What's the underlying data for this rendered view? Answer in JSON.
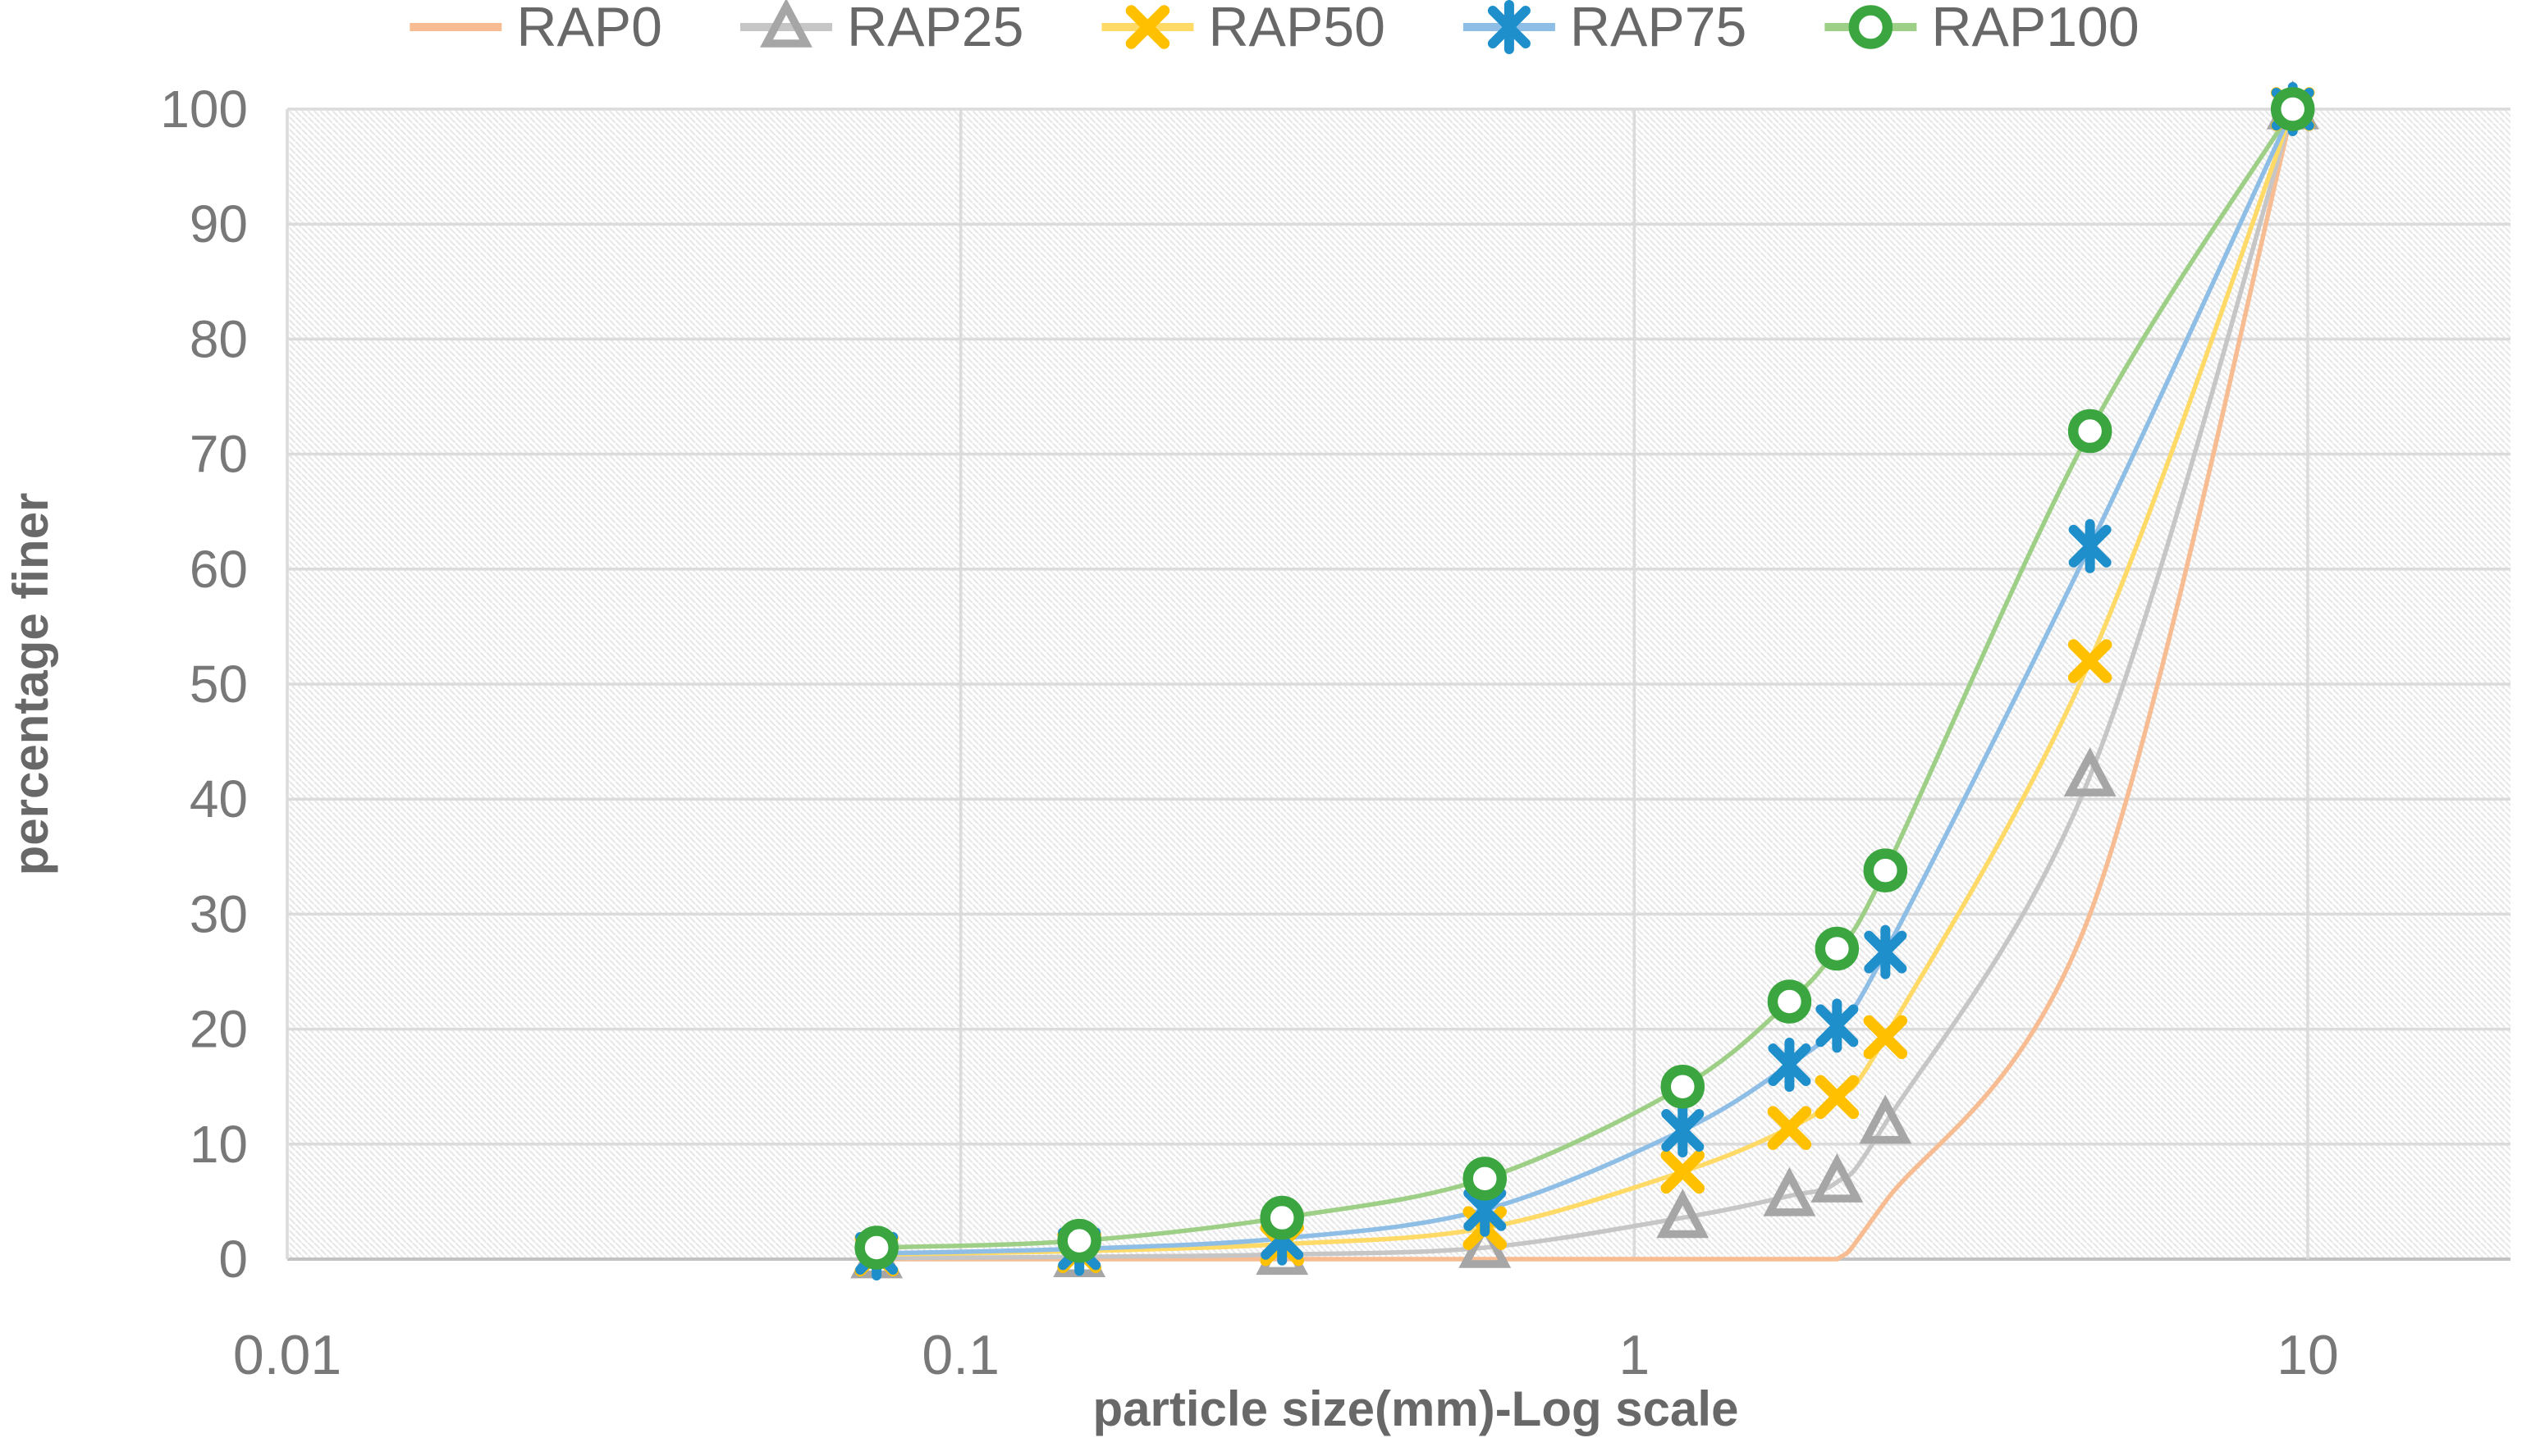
{
  "page": {
    "background": "#ffffff"
  },
  "legend": {
    "items": [
      "RAP0",
      "RAP25",
      "RAP50",
      "RAP75",
      "RAP100"
    ]
  },
  "chart_data": {
    "type": "line",
    "x_scale": "log",
    "title": "",
    "xlabel": "particle size(mm)-Log scale",
    "ylabel": "percentage finer",
    "xlim": [
      0.01,
      20
    ],
    "ylim": [
      0,
      100
    ],
    "x_sieve_sizes_mm": [
      0.075,
      0.15,
      0.3,
      0.6,
      1.18,
      1.7,
      2.0,
      2.36,
      4.75,
      9.5
    ],
    "series": [
      {
        "name": "RAP0",
        "marker": "none",
        "line_color": "#F8BC93",
        "marker_color": "#F8BC93",
        "values": [
          0,
          0,
          0,
          0,
          0,
          0,
          0,
          5,
          30,
          100
        ]
      },
      {
        "name": "RAP25",
        "marker": "triangle-open",
        "line_color": "#C6C6C6",
        "marker_color": "#A6A6A6",
        "values": [
          0.1,
          0.2,
          0.4,
          1,
          3.6,
          5.5,
          6.7,
          11.8,
          42,
          100
        ]
      },
      {
        "name": "RAP50",
        "marker": "x",
        "line_color": "#FFDA66",
        "marker_color": "#FFC000",
        "values": [
          0.4,
          0.7,
          1.3,
          2.7,
          7.6,
          11.4,
          14.1,
          19.3,
          52,
          100
        ]
      },
      {
        "name": "RAP75",
        "marker": "star",
        "line_color": "#8EBEE6",
        "marker_color": "#1F8FCC",
        "values": [
          0.5,
          0.9,
          1.8,
          4.3,
          11.2,
          16.9,
          20.3,
          26.7,
          62,
          100
        ]
      },
      {
        "name": "RAP100",
        "marker": "circle-open",
        "line_color": "#9ECF86",
        "marker_color": "#3BA63F",
        "values": [
          1,
          1.6,
          3.6,
          7,
          15,
          22.4,
          27,
          33.8,
          72,
          100
        ]
      }
    ],
    "x_ticks": [
      {
        "label": "0.01",
        "value": 0.01
      },
      {
        "label": "0.1",
        "value": 0.1
      },
      {
        "label": "1",
        "value": 1
      },
      {
        "label": "10",
        "value": 10
      }
    ],
    "y_ticks": [
      0,
      10,
      20,
      30,
      40,
      50,
      60,
      70,
      80,
      90,
      100
    ],
    "grid": {
      "horizontal_step": 10,
      "vertical_at": [
        0.01,
        0.1,
        1,
        10
      ]
    },
    "styles": {
      "gridline_color": "#DBDBDB",
      "axis_line_color": "#C2C2C2",
      "hatch_color": "#E7E7E7",
      "tick_text_color": "#787878",
      "title_text_color": "#686868",
      "legend_text_color": "#686868"
    }
  }
}
